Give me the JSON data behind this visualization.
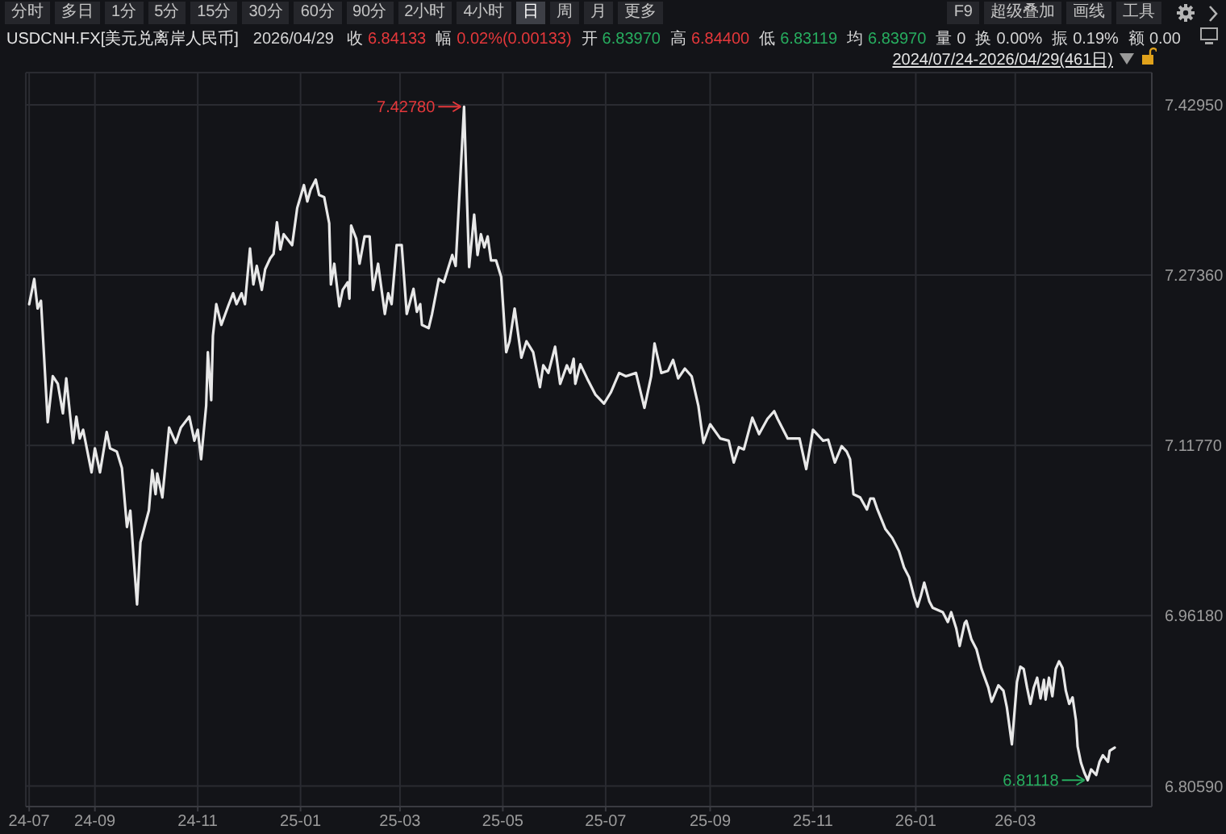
{
  "chart_data": {
    "type": "line",
    "title": "USDCNH.FX[美元兑离岸人民币]",
    "subtitle": "2026/04/29 收 6.84133 幅 0.02%(0.00133) 开 6.83970 高 6.84400 低 6.83119 均 6.83970 量 0 换 0.00% 振 0.19% 额 0.00",
    "annotations": [
      "分时",
      "多日",
      "1分",
      "5分",
      "15分",
      "30分",
      "60分",
      "90分",
      "2小时",
      "4小时",
      "日",
      "周",
      "月",
      "更多",
      "F9",
      "超级叠加",
      "画线",
      "工具",
      "2024/07/24-2026/04/29(461日)",
      {
        "text": "7.42780",
        "x": "2025-04-08",
        "y": 7.4278
      },
      {
        "text": "6.81118",
        "x": "2026-04-13",
        "y": 6.81118
      }
    ],
    "x": [
      "2024-07-24",
      "2024-07-27",
      "2024-07-29",
      "2024-07-31",
      "2024-08-04",
      "2024-08-07",
      "2024-08-10",
      "2024-08-13",
      "2024-08-15",
      "2024-08-19",
      "2024-08-21",
      "2024-08-23",
      "2024-08-25",
      "2024-08-30",
      "2024-09-01",
      "2024-09-04",
      "2024-09-08",
      "2024-09-10",
      "2024-09-14",
      "2024-09-17",
      "2024-09-20",
      "2024-09-22",
      "2024-09-24",
      "2024-09-26",
      "2024-09-28",
      "2024-10-03",
      "2024-10-05",
      "2024-10-07",
      "2024-10-08",
      "2024-10-11",
      "2024-10-15",
      "2024-10-19",
      "2024-10-22",
      "2024-10-27",
      "2024-10-30",
      "2024-11-01",
      "2024-11-03",
      "2024-11-06",
      "2024-11-07",
      "2024-11-09",
      "2024-11-10",
      "2024-11-12",
      "2024-11-15",
      "2024-11-19",
      "2024-11-22",
      "2024-11-24",
      "2024-11-27",
      "2024-11-29",
      "2024-12-02",
      "2024-12-04",
      "2024-12-06",
      "2024-12-09",
      "2024-12-11",
      "2024-12-14",
      "2024-12-16",
      "2024-12-18",
      "2024-12-20",
      "2024-12-22",
      "2024-12-27",
      "2024-12-30",
      "2025-01-03",
      "2025-01-05",
      "2025-01-07",
      "2025-01-10",
      "2025-01-12",
      "2025-01-15",
      "2025-01-18",
      "2025-01-19",
      "2025-01-21",
      "2025-01-24",
      "2025-01-26",
      "2025-01-29",
      "2025-01-30",
      "2025-01-31",
      "2025-02-03",
      "2025-02-05",
      "2025-02-08",
      "2025-02-11",
      "2025-02-13",
      "2025-02-16",
      "2025-02-20",
      "2025-02-22",
      "2025-02-24",
      "2025-02-27",
      "2025-03-02",
      "2025-03-05",
      "2025-03-09",
      "2025-03-11",
      "2025-03-13",
      "2025-03-14",
      "2025-03-18",
      "2025-03-20",
      "2025-03-24",
      "2025-03-27",
      "2025-04-01",
      "2025-04-03",
      "2025-04-08",
      "2025-04-11",
      "2025-04-14",
      "2025-04-16",
      "2025-04-18",
      "2025-04-20",
      "2025-04-22",
      "2025-04-24",
      "2025-04-27",
      "2025-04-30",
      "2025-05-03",
      "2025-05-05",
      "2025-05-08",
      "2025-05-12",
      "2025-05-15",
      "2025-05-19",
      "2025-05-23",
      "2025-05-25",
      "2025-05-28",
      "2025-06-01",
      "2025-06-04",
      "2025-06-08",
      "2025-06-10",
      "2025-06-12",
      "2025-06-13",
      "2025-06-16",
      "2025-06-20",
      "2025-06-25",
      "2025-06-30",
      "2025-07-04",
      "2025-07-09",
      "2025-07-13",
      "2025-07-19",
      "2025-07-24",
      "2025-07-28",
      "2025-07-30",
      "2025-08-03",
      "2025-08-07",
      "2025-08-10",
      "2025-08-13",
      "2025-08-17",
      "2025-08-21",
      "2025-08-25",
      "2025-08-28",
      "2025-09-01",
      "2025-09-07",
      "2025-09-12",
      "2025-09-15",
      "2025-09-18",
      "2025-09-21",
      "2025-09-26",
      "2025-09-30",
      "2025-10-05",
      "2025-10-09",
      "2025-10-11",
      "2025-10-17",
      "2025-10-24",
      "2025-10-28",
      "2025-11-01",
      "2025-11-07",
      "2025-11-10",
      "2025-11-14",
      "2025-11-18",
      "2025-11-21",
      "2025-11-23",
      "2025-11-25",
      "2025-11-29",
      "2025-12-03",
      "2025-12-05",
      "2025-12-07",
      "2025-12-09",
      "2025-12-14",
      "2025-12-18",
      "2025-12-22",
      "2025-12-25",
      "2025-12-28",
      "2025-12-31",
      "2026-01-02",
      "2026-01-04",
      "2026-01-06",
      "2026-01-09",
      "2026-01-11",
      "2026-01-14",
      "2026-01-17",
      "2026-01-20",
      "2026-01-22",
      "2026-01-25",
      "2026-01-27",
      "2026-01-30",
      "2026-01-31",
      "2026-02-03",
      "2026-02-06",
      "2026-02-09",
      "2026-02-13",
      "2026-02-15",
      "2026-02-19",
      "2026-02-22",
      "2026-02-24",
      "2026-02-27",
      "2026-03-02",
      "2026-03-04",
      "2026-03-06",
      "2026-03-08",
      "2026-03-10",
      "2026-03-12",
      "2026-03-14",
      "2026-03-16",
      "2026-03-18",
      "2026-03-19",
      "2026-03-21",
      "2026-03-23",
      "2026-03-25",
      "2026-03-27",
      "2026-03-29",
      "2026-03-31",
      "2026-04-02",
      "2026-04-04",
      "2026-04-06",
      "2026-04-07",
      "2026-04-09",
      "2026-04-11",
      "2026-04-13",
      "2026-04-15",
      "2026-04-18",
      "2026-04-20",
      "2026-04-22",
      "2026-04-25",
      "2026-04-26",
      "2026-04-29"
    ],
    "values": [
      7.247,
      7.27,
      7.243,
      7.25,
      7.139,
      7.181,
      7.174,
      7.147,
      7.179,
      7.12,
      7.144,
      7.124,
      7.132,
      7.093,
      7.115,
      7.093,
      7.13,
      7.115,
      7.112,
      7.097,
      7.043,
      7.058,
      7.014,
      6.972,
      7.029,
      7.058,
      7.095,
      7.073,
      7.092,
      7.07,
      7.134,
      7.12,
      7.134,
      7.144,
      7.122,
      7.132,
      7.105,
      7.154,
      7.203,
      7.159,
      7.218,
      7.247,
      7.228,
      7.245,
      7.257,
      7.247,
      7.257,
      7.247,
      7.298,
      7.265,
      7.282,
      7.26,
      7.279,
      7.289,
      7.293,
      7.322,
      7.297,
      7.311,
      7.301,
      7.335,
      7.356,
      7.341,
      7.352,
      7.361,
      7.347,
      7.345,
      7.321,
      7.265,
      7.284,
      7.245,
      7.26,
      7.267,
      7.252,
      7.319,
      7.307,
      7.284,
      7.309,
      7.309,
      7.26,
      7.284,
      7.238,
      7.257,
      7.247,
      7.301,
      7.301,
      7.238,
      7.261,
      7.24,
      7.247,
      7.228,
      7.225,
      7.238,
      7.27,
      7.267,
      7.292,
      7.282,
      7.4278,
      7.281,
      7.329,
      7.292,
      7.311,
      7.299,
      7.309,
      7.287,
      7.287,
      7.272,
      7.203,
      7.213,
      7.243,
      7.198,
      7.213,
      7.203,
      7.171,
      7.191,
      7.184,
      7.208,
      7.174,
      7.191,
      7.184,
      7.197,
      7.174,
      7.192,
      7.179,
      7.164,
      7.156,
      7.166,
      7.184,
      7.181,
      7.184,
      7.152,
      7.181,
      7.211,
      7.184,
      7.186,
      7.196,
      7.179,
      7.188,
      7.181,
      7.154,
      7.12,
      7.137,
      7.124,
      7.122,
      7.102,
      7.116,
      7.114,
      7.143,
      7.128,
      7.142,
      7.149,
      7.142,
      7.124,
      7.124,
      7.096,
      7.132,
      7.122,
      7.123,
      7.102,
      7.117,
      7.112,
      7.105,
      7.073,
      7.07,
      7.059,
      7.069,
      7.069,
      7.06,
      7.041,
      7.033,
      7.021,
      7.006,
      6.997,
      6.979,
      6.97,
      6.98,
      6.992,
      6.975,
      6.969,
      6.967,
      6.965,
      6.956,
      6.965,
      6.95,
      6.934,
      6.955,
      6.957,
      6.94,
      6.931,
      6.913,
      6.896,
      6.883,
      6.898,
      6.893,
      6.878,
      6.844,
      6.901,
      6.915,
      6.913,
      6.896,
      6.881,
      6.896,
      6.905,
      6.886,
      6.903,
      6.885,
      6.905,
      6.888,
      6.913,
      6.92,
      6.914,
      6.893,
      6.881,
      6.887,
      6.866,
      6.842,
      6.827,
      6.818,
      6.81118,
      6.821,
      6.816,
      6.828,
      6.834,
      6.828,
      6.838,
      6.841
    ],
    "color": "#e8e8e8",
    "marker": "none",
    "line_style": "solid",
    "xlim": [
      "2024-07-22",
      "2026-05-21"
    ],
    "xticks": [
      {
        "value": "2024-07-24",
        "label": "24-07"
      },
      {
        "value": "2024-09-01",
        "label": "24-09"
      },
      {
        "value": "2024-11-01",
        "label": "24-11"
      },
      {
        "value": "2025-01-01",
        "label": "25-01"
      },
      {
        "value": "2025-03-01",
        "label": "25-03"
      },
      {
        "value": "2025-05-01",
        "label": "25-05"
      },
      {
        "value": "2025-07-01",
        "label": "25-07"
      },
      {
        "value": "2025-09-01",
        "label": "25-09"
      },
      {
        "value": "2025-11-01",
        "label": "25-11"
      },
      {
        "value": "2026-01-01",
        "label": "26-01"
      },
      {
        "value": "2026-03-01",
        "label": "26-03"
      }
    ],
    "ylim": [
      6.787,
      7.459
    ],
    "yticks": [
      {
        "value": 6.8059,
        "label": "6.80590"
      },
      {
        "value": 6.9618,
        "label": "6.96180"
      },
      {
        "value": 7.1177,
        "label": "7.11770"
      },
      {
        "value": 7.2736,
        "label": "7.27360"
      },
      {
        "value": 7.4295,
        "label": "7.42950"
      }
    ],
    "grid": true
  }
}
